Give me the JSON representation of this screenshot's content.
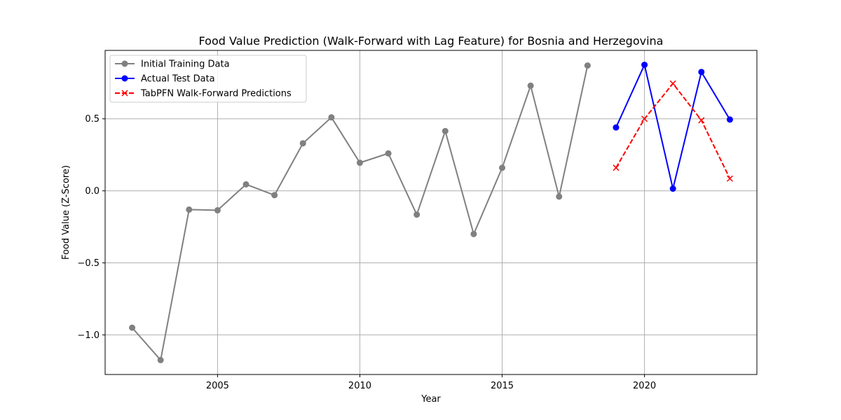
{
  "chart_data": {
    "type": "line",
    "title": "Food Value Prediction (Walk-Forward with Lag Feature) for Bosnia and Herzegovina",
    "xlabel": "Year",
    "ylabel": "Food Value (Z-Score)",
    "xlim": [
      2001.05,
      2023.95
    ],
    "ylim": [
      -1.275,
      0.975
    ],
    "xticks": [
      2005,
      2010,
      2015,
      2020
    ],
    "yticks": [
      -1.0,
      -0.5,
      0.0,
      0.5
    ],
    "xtick_labels": [
      "2005",
      "2010",
      "2015",
      "2020"
    ],
    "ytick_labels": [
      "−1.0",
      "−0.5",
      "0.0",
      "0.5"
    ],
    "grid": true,
    "legend_position": "upper-left",
    "series": [
      {
        "name": "Initial Training Data",
        "color": "#808080",
        "marker": "circle",
        "line_style": "solid",
        "x": [
          2002,
          2003,
          2004,
          2005,
          2006,
          2007,
          2008,
          2009,
          2010,
          2011,
          2012,
          2013,
          2014,
          2015,
          2016,
          2017,
          2018
        ],
        "y": [
          -0.95,
          -1.175,
          -0.13,
          -0.135,
          0.045,
          -0.03,
          0.33,
          0.51,
          0.195,
          0.26,
          -0.165,
          0.415,
          -0.3,
          0.16,
          0.73,
          -0.04,
          0.87
        ]
      },
      {
        "name": "Actual Test Data",
        "color": "#0000ff",
        "marker": "circle",
        "line_style": "solid",
        "x": [
          2019,
          2020,
          2021,
          2022,
          2023
        ],
        "y": [
          0.44,
          0.875,
          0.015,
          0.825,
          0.495
        ]
      },
      {
        "name": "TabPFN Walk-Forward Predictions",
        "color": "#ff0000",
        "marker": "x",
        "line_style": "dashed",
        "x": [
          2019,
          2020,
          2021,
          2022,
          2023
        ],
        "y": [
          0.16,
          0.5,
          0.745,
          0.49,
          0.085
        ]
      }
    ]
  }
}
